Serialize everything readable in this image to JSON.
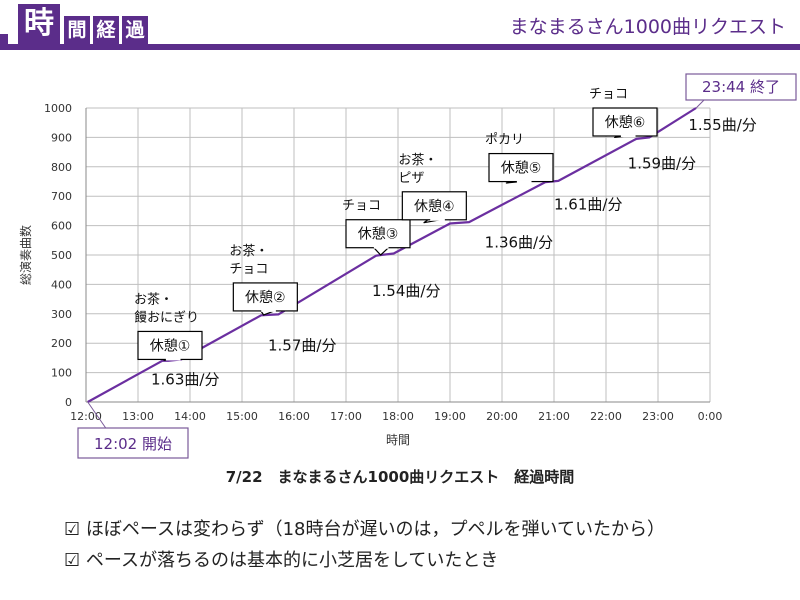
{
  "colors": {
    "accent": "#5b2d8a",
    "line": "#6b2fa0",
    "grid": "#bfbfbf"
  },
  "header": {
    "logo_main": "時",
    "logo_sub": [
      "間",
      "経",
      "過"
    ],
    "title": "まなまるさん1000曲リクエスト"
  },
  "chart_data": {
    "type": "line",
    "xlabel": "時間",
    "ylabel": "総演奏曲数",
    "x_ticks": [
      "12:00",
      "13:00",
      "14:00",
      "15:00",
      "16:00",
      "17:00",
      "18:00",
      "19:00",
      "20:00",
      "21:00",
      "22:00",
      "23:00",
      "0:00"
    ],
    "y_ticks": [
      0,
      100,
      200,
      300,
      400,
      500,
      600,
      700,
      800,
      900,
      1000
    ],
    "xlim": [
      "12:00",
      "0:00"
    ],
    "ylim": [
      0,
      1000
    ],
    "grid": true,
    "series": [
      {
        "x": [
          "12:02",
          "13:28",
          "13:35",
          "13:50",
          "15:22",
          "15:42",
          "17:35",
          "17:55",
          "19:00",
          "19:22",
          "20:50",
          "21:05",
          "22:35",
          "22:50",
          "23:44"
        ],
        "values": [
          0,
          140,
          140,
          145,
          295,
          298,
          498,
          505,
          607,
          612,
          748,
          752,
          895,
          900,
          1000
        ]
      }
    ],
    "rates": [
      {
        "label": "1.63曲/分",
        "anchor_x": "13:15",
        "anchor_y": 60
      },
      {
        "label": "1.57曲/分",
        "anchor_x": "15:30",
        "anchor_y": 175
      },
      {
        "label": "1.54曲/分",
        "anchor_x": "17:30",
        "anchor_y": 360
      },
      {
        "label": "1.36曲/分",
        "anchor_x": "19:40",
        "anchor_y": 525
      },
      {
        "label": "1.61曲/分",
        "anchor_x": "21:00",
        "anchor_y": 655
      },
      {
        "label": "1.59曲/分",
        "anchor_x": "22:25",
        "anchor_y": 795
      },
      {
        "label": "1.55曲/分",
        "anchor_x": "23:35",
        "anchor_y": 925
      }
    ],
    "breaks": [
      {
        "label": "休憩①",
        "note": [
          "お茶・",
          "饅おにぎり"
        ],
        "box_x": "13:00",
        "box_y": 240,
        "point_x": "13:30",
        "point_y": 142
      },
      {
        "label": "休憩②",
        "note": [
          "お茶・",
          "チョコ"
        ],
        "box_x": "14:50",
        "box_y": 405,
        "point_x": "15:25",
        "point_y": 296
      },
      {
        "label": "休憩③",
        "note": [
          "チョコ"
        ],
        "box_x": "17:00",
        "box_y": 620,
        "point_x": "17:40",
        "point_y": 500
      },
      {
        "label": "休憩④",
        "note": [
          "お茶・",
          "ピザ"
        ],
        "box_x": "18:05",
        "box_y": 715,
        "point_x": "18:30",
        "point_y": 610
      },
      {
        "label": "休憩⑤",
        "note": [
          "ポカリ"
        ],
        "box_x": "19:45",
        "box_y": 845,
        "point_x": "20:05",
        "point_y": 745
      },
      {
        "label": "休憩⑥",
        "note": [
          "チョコ"
        ],
        "box_x": "21:45",
        "box_y": 1000,
        "point_x": "22:10",
        "point_y": 900
      }
    ],
    "start_label": "12:02 開始",
    "end_label": "23:44 終了"
  },
  "caption": "7/22　まなまるさん1000曲リクエスト　経過時間",
  "notes": [
    "☑ ほぼペースは変わらず（18時台が遅いのは，プペルを弾いていたから）",
    "☑ ペースが落ちるのは基本的に小芝居をしていたとき"
  ]
}
